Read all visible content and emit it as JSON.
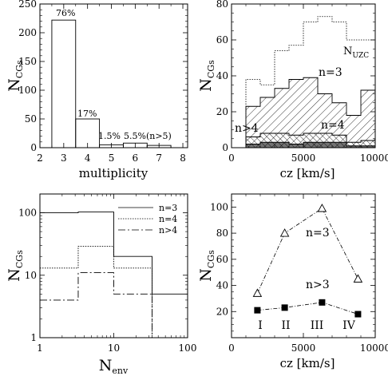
{
  "chart_data": [
    {
      "type": "bar",
      "id": "multiplicity",
      "xlabel": "multiplicity",
      "ylabel": "N",
      "ylabel_sub": "CGs",
      "xlim": [
        2,
        8.2
      ],
      "ylim": [
        0,
        250
      ],
      "xticks": [
        "2",
        "3",
        "4",
        "5",
        "6",
        "7",
        "8"
      ],
      "yticks": [
        "0",
        "50",
        "100",
        "150",
        "200",
        "250"
      ],
      "bins": [
        {
          "x0": 2.5,
          "x1": 3.5,
          "value": 222
        },
        {
          "x0": 3.5,
          "x1": 4.5,
          "value": 50
        },
        {
          "x0": 4.5,
          "x1": 5.5,
          "value": 5
        },
        {
          "x0": 5.5,
          "x1": 6.5,
          "value": 8
        },
        {
          "x0": 6.5,
          "x1": 7.5,
          "value": 4
        }
      ],
      "annotations": [
        "76%",
        "17%",
        "1.5%",
        "5.5%(n>5)"
      ]
    },
    {
      "type": "bar",
      "id": "cz-histogram",
      "xlabel": "cz [km/s]",
      "ylabel": "N",
      "ylabel_sub": "CGs",
      "xlim": [
        0,
        10000
      ],
      "ylim": [
        0,
        80
      ],
      "xticks": [
        "0",
        "5000",
        "10000"
      ],
      "yticks": [
        "0",
        "20",
        "40",
        "60",
        "80"
      ],
      "edges": [
        1000,
        2000,
        3000,
        4000,
        5000,
        6000,
        7000,
        8000,
        9000,
        10000
      ],
      "series": [
        {
          "name": "N",
          "name_sub": "UZC",
          "values": [
            38,
            35,
            54,
            57,
            70,
            73,
            70,
            60,
            60
          ]
        },
        {
          "name": "n=3",
          "values": [
            23,
            28,
            33,
            38,
            39,
            30,
            25,
            18,
            32
          ]
        },
        {
          "name": "n=4",
          "values": [
            6,
            8,
            8,
            7,
            8,
            8,
            7,
            3,
            4
          ]
        },
        {
          "name": "n>4",
          "values": [
            2,
            3,
            3,
            2,
            3,
            3,
            3,
            1,
            1
          ]
        }
      ]
    },
    {
      "type": "line",
      "id": "nenv",
      "xlabel": "N",
      "xlabel_sub": "env",
      "ylabel": "N",
      "ylabel_sub": "CGs",
      "xscale": "log",
      "yscale": "log",
      "xlim": [
        1,
        100
      ],
      "ylim": [
        1,
        200
      ],
      "xticks": [
        "1",
        "10",
        "100"
      ],
      "yticks": [
        "1",
        "10",
        "100"
      ],
      "edges": [
        1,
        3.3,
        10,
        33,
        100
      ],
      "legend_position": "top-right",
      "series": [
        {
          "name": "n=3",
          "values": [
            100,
            103,
            20,
            5
          ]
        },
        {
          "name": "n=4",
          "values": [
            13,
            29,
            13,
            1
          ]
        },
        {
          "name": "n>4",
          "values": [
            4,
            11,
            5,
            1
          ]
        }
      ]
    },
    {
      "type": "line",
      "id": "cz-bins",
      "xlabel": "cz [km/s]",
      "ylabel": "N",
      "ylabel_sub": "CGs",
      "xlim": [
        0,
        10000
      ],
      "ylim": [
        0,
        110
      ],
      "xticks": [
        "0",
        "5000",
        "10000"
      ],
      "yticks": [
        "20",
        "40",
        "60",
        "80",
        "100"
      ],
      "series": [
        {
          "name": "n=3",
          "x": [
            1800,
            3700,
            6300,
            8800
          ],
          "values": [
            34,
            80,
            99,
            45
          ]
        },
        {
          "name": "n>3",
          "x": [
            1800,
            3700,
            6300,
            8800
          ],
          "values": [
            21,
            23,
            27,
            18
          ]
        }
      ],
      "annotations": [
        "I",
        "II",
        "III",
        "IV"
      ]
    }
  ]
}
